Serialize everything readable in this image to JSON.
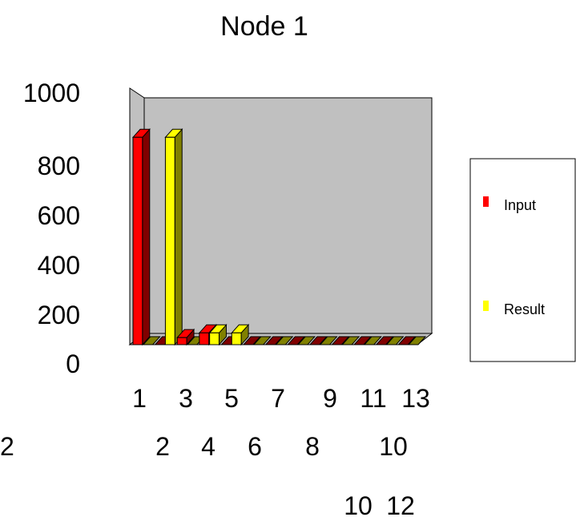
{
  "chart_data": {
    "type": "bar",
    "title": "Node 1",
    "categories": [
      "1",
      "2",
      "3",
      "4",
      "5",
      "6",
      "7",
      "8",
      "9",
      "10",
      "11",
      "12",
      "13"
    ],
    "series": [
      {
        "name": "Input",
        "color": "#ff0000",
        "side_color": "#800000",
        "values": [
          880,
          0,
          30,
          50,
          0,
          0,
          0,
          0,
          0,
          0,
          0,
          0,
          0
        ]
      },
      {
        "name": "Result",
        "color": "#ffff00",
        "side_color": "#808000",
        "values": [
          0,
          880,
          0,
          50,
          50,
          0,
          0,
          0,
          0,
          0,
          0,
          0,
          0
        ]
      }
    ],
    "ylim": [
      0,
      1000
    ],
    "y_ticks": [
      "0",
      "200",
      "400",
      "600",
      "800",
      "1000"
    ],
    "x_tick_rows": [
      [
        "1",
        "3",
        "5",
        "7",
        "9",
        "11",
        "13"
      ],
      [
        "2",
        "4",
        "6",
        "8",
        "10",
        "12"
      ],
      [
        "10",
        "12"
      ]
    ],
    "legend": {
      "position": "right"
    },
    "wall_color": "#c0c0c0",
    "floor_color": "#808000"
  }
}
